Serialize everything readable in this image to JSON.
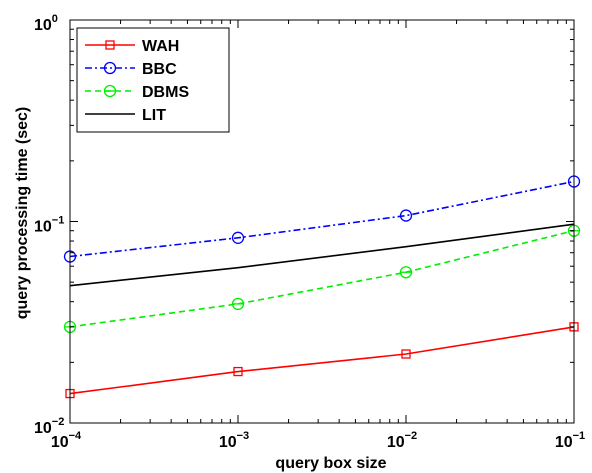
{
  "chart_data": {
    "type": "line",
    "title": "",
    "xlabel": "query box size",
    "ylabel": "query processing time (sec)",
    "xscale": "log",
    "yscale": "log",
    "xlim": [
      0.0001,
      0.1
    ],
    "ylim": [
      0.01,
      1
    ],
    "x_ticks": [
      {
        "base": "10",
        "exp": "−4",
        "value": 0.0001
      },
      {
        "base": "10",
        "exp": "−3",
        "value": 0.001
      },
      {
        "base": "10",
        "exp": "−2",
        "value": 0.01
      },
      {
        "base": "10",
        "exp": "−1",
        "value": 0.1
      }
    ],
    "y_ticks": [
      {
        "base": "10",
        "exp": "−2",
        "value": 0.01
      },
      {
        "base": "10",
        "exp": "−1",
        "value": 0.1
      },
      {
        "base": "10",
        "exp": "0",
        "value": 1
      }
    ],
    "grid": false,
    "legend_position": "top-left",
    "x": [
      0.0001,
      0.001,
      0.01,
      0.1
    ],
    "series": [
      {
        "name": "WAH",
        "values": [
          0.014,
          0.018,
          0.022,
          0.03
        ],
        "color": "#ff0000",
        "dash": "solid",
        "marker": "square"
      },
      {
        "name": "BBC",
        "values": [
          0.067,
          0.083,
          0.107,
          0.158
        ],
        "color": "#0000ff",
        "dash": "dashdot",
        "marker": "circle"
      },
      {
        "name": "DBMS",
        "values": [
          0.03,
          0.039,
          0.056,
          0.09
        ],
        "color": "#00ee00",
        "dash": "dashed",
        "marker": "circle-minus"
      },
      {
        "name": "LIT",
        "values": [
          0.048,
          0.059,
          0.075,
          0.097
        ],
        "color": "#000000",
        "dash": "solid",
        "marker": "none"
      }
    ]
  }
}
